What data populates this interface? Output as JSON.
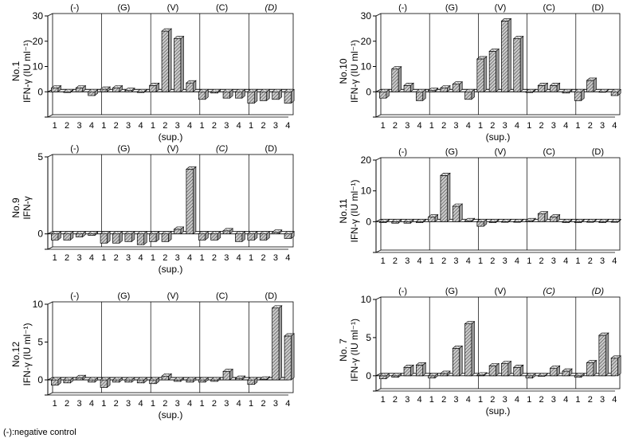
{
  "footnote": "(-):negative control",
  "chart_data": [
    {
      "type": "bar",
      "name": "panel-no1",
      "title": "No.1",
      "ylabel_title": "No.1",
      "ylabel_unit": "IFN-γ (IU ml⁻¹)",
      "xlabel": "(sup.)",
      "ylim": [
        -10,
        30
      ],
      "yticks": [
        0,
        10,
        20,
        30
      ],
      "ytick_labels": [
        "0",
        "10",
        "20",
        "30"
      ],
      "groups": [
        "(-)",
        "(G)",
        "(V)",
        "(C)",
        "(D)"
      ],
      "group_italic": [
        false,
        false,
        false,
        false,
        true
      ],
      "sub_labels": [
        "1",
        "2",
        "3",
        "4"
      ],
      "values": [
        [
          1.5,
          -0.3,
          1.5,
          -1.5
        ],
        [
          1,
          1.5,
          0.5,
          -0.3
        ],
        [
          2.5,
          24,
          21,
          3.5
        ],
        [
          -3,
          -0.5,
          -2.5,
          -2.5
        ],
        [
          -4.5,
          -3.5,
          -3,
          -4.5
        ]
      ]
    },
    {
      "type": "bar",
      "name": "panel-no10",
      "title": "No.10",
      "ylabel_title": "No.10",
      "ylabel_unit": "IFN-γ (IU ml⁻¹)",
      "xlabel": "(sup.)",
      "ylim": [
        -10,
        30
      ],
      "yticks": [
        0,
        10,
        20,
        30
      ],
      "ytick_labels": [
        "0",
        "10",
        "20",
        "30"
      ],
      "groups": [
        "(-)",
        "(G)",
        "(V)",
        "(C)",
        "(D)"
      ],
      "group_italic": [
        false,
        false,
        false,
        false,
        false
      ],
      "sub_labels": [
        "1",
        "2",
        "3",
        "4"
      ],
      "values": [
        [
          -2.5,
          9,
          2.5,
          -3.5
        ],
        [
          0.5,
          1.5,
          3,
          -3
        ],
        [
          13,
          16,
          28,
          21
        ],
        [
          -0.3,
          2.5,
          2.5,
          -0.5
        ],
        [
          -3.5,
          4.5,
          0,
          -1.5
        ]
      ]
    },
    {
      "type": "bar",
      "name": "panel-no9",
      "title": "No.9",
      "ylabel_title": "No.9",
      "ylabel_unit": "IFN-γ",
      "xlabel": "(sup.)",
      "ylim": [
        -1,
        5
      ],
      "yticks": [
        0,
        5
      ],
      "ytick_labels": [
        "0",
        "5"
      ],
      "groups": [
        "(-)",
        "(G)",
        "(V)",
        "(C)",
        "(D)"
      ],
      "group_italic": [
        false,
        false,
        false,
        true,
        false
      ],
      "sub_labels": [
        "1",
        "2",
        "3",
        "4"
      ],
      "values": [
        [
          -0.4,
          -0.4,
          -0.2,
          -0.1
        ],
        [
          -0.6,
          -0.6,
          -0.5,
          -0.7
        ],
        [
          -0.5,
          -0.5,
          0.3,
          4.2
        ],
        [
          -0.4,
          -0.4,
          0.2,
          -0.5
        ],
        [
          -0.4,
          -0.4,
          0.1,
          -0.3
        ]
      ]
    },
    {
      "type": "bar",
      "name": "panel-no11",
      "title": "No.11",
      "ylabel_title": "No.11",
      "ylabel_unit": "IFN-γ (IU ml⁻¹)",
      "xlabel": "",
      "ylim": [
        -10,
        20
      ],
      "yticks": [
        0,
        10,
        20
      ],
      "ytick_labels": [
        "0",
        "10",
        "20"
      ],
      "groups": [
        "(-)",
        "(G)",
        "(V)",
        "(C)",
        "(D)"
      ],
      "group_italic": [
        false,
        false,
        false,
        false,
        false
      ],
      "sub_labels": [
        "1",
        "2",
        "3",
        "4"
      ],
      "values": [
        [
          -0.3,
          -0.5,
          -0.5,
          -0.3
        ],
        [
          1.5,
          15,
          5,
          0.3
        ],
        [
          -1.5,
          -0.3,
          -0.2,
          -0.2
        ],
        [
          0.3,
          2.5,
          1.5,
          -0.3
        ],
        [
          -0.3,
          -0.2,
          -0.3,
          -0.2
        ]
      ]
    },
    {
      "type": "bar",
      "name": "panel-no12",
      "title": "No.12",
      "ylabel_title": "No.12",
      "ylabel_unit": "IFN-γ (IU ml⁻¹)",
      "xlabel": "(sup.)",
      "ylim": [
        -2,
        10
      ],
      "yticks": [
        0,
        5,
        10
      ],
      "ytick_labels": [
        "0",
        "5",
        "10"
      ],
      "groups": [
        "(-)",
        "(G)",
        "(V)",
        "(C)",
        "(D)"
      ],
      "group_italic": [
        false,
        false,
        false,
        false,
        false
      ],
      "sub_labels": [
        "1",
        "2",
        "3",
        "4"
      ],
      "values": [
        [
          -0.7,
          -0.4,
          0.3,
          -0.3
        ],
        [
          -1,
          -0.3,
          -0.3,
          -0.4
        ],
        [
          -0.5,
          0.5,
          -0.2,
          -0.3
        ],
        [
          -0.3,
          -0.2,
          1.1,
          0.2
        ],
        [
          -0.6,
          0.1,
          9.5,
          5.8
        ]
      ]
    },
    {
      "type": "bar",
      "name": "panel-no7",
      "title": "No. 7",
      "ylabel_title": "No. 7",
      "ylabel_unit": "IFN-γ (IU ml⁻¹)",
      "xlabel": "(sup.)",
      "ylim": [
        -2,
        10
      ],
      "yticks": [
        0,
        5,
        10
      ],
      "ytick_labels": [
        "0",
        "5",
        "10"
      ],
      "groups": [
        "(-)",
        "(G)",
        "(V)",
        "(C)",
        "(D)"
      ],
      "group_italic": [
        false,
        false,
        false,
        true,
        true
      ],
      "sub_labels": [
        "1",
        "2",
        "3",
        "4"
      ],
      "values": [
        [
          -0.4,
          -0.2,
          1.1,
          1.4
        ],
        [
          -0.3,
          0.3,
          3.6,
          6.8
        ],
        [
          0.1,
          1.3,
          1.6,
          1.1
        ],
        [
          -0.3,
          0,
          1,
          0.6
        ],
        [
          -0.2,
          1.7,
          5.3,
          2.3
        ]
      ]
    }
  ]
}
